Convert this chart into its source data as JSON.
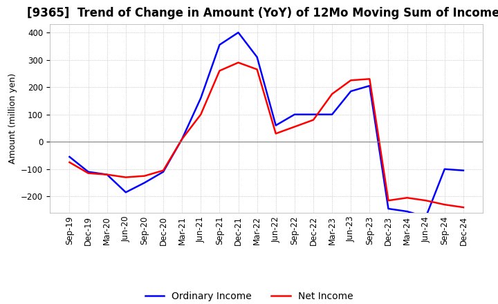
{
  "title": "[9365]  Trend of Change in Amount (YoY) of 12Mo Moving Sum of Incomes",
  "ylabel": "Amount (million yen)",
  "ylim": [
    -260,
    430
  ],
  "yticks": [
    -200,
    -100,
    0,
    100,
    200,
    300,
    400
  ],
  "x_labels": [
    "Sep-19",
    "Dec-19",
    "Mar-20",
    "Jun-20",
    "Sep-20",
    "Dec-20",
    "Mar-21",
    "Jun-21",
    "Sep-21",
    "Dec-21",
    "Mar-22",
    "Jun-22",
    "Sep-22",
    "Dec-22",
    "Mar-23",
    "Jun-23",
    "Sep-23",
    "Dec-23",
    "Mar-24",
    "Jun-24",
    "Sep-24",
    "Dec-24"
  ],
  "ordinary_income": [
    -55,
    -110,
    -120,
    -185,
    -150,
    -110,
    10,
    160,
    355,
    400,
    310,
    60,
    100,
    100,
    100,
    185,
    205,
    -245,
    -255,
    -275,
    -100,
    -105
  ],
  "net_income": [
    -75,
    -115,
    -120,
    -130,
    -125,
    -105,
    10,
    100,
    260,
    290,
    265,
    30,
    55,
    80,
    175,
    225,
    230,
    -215,
    -205,
    -215,
    -230,
    -240
  ],
  "ordinary_color": "#0000ff",
  "net_color": "#ff0000",
  "grid_color": "#aaaaaa",
  "background_color": "#ffffff",
  "title_fontsize": 12,
  "label_fontsize": 9,
  "tick_fontsize": 8.5,
  "legend_fontsize": 10,
  "line_width": 1.8
}
